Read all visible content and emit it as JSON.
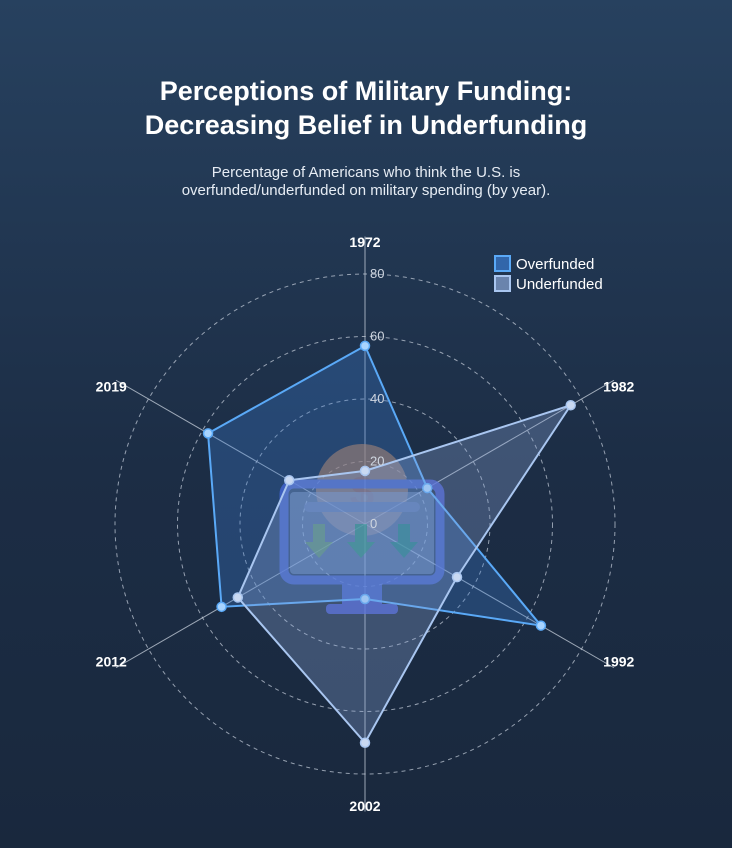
{
  "header": {
    "title_line1": "Perceptions of Military Funding:",
    "title_line2": "Decreasing Belief in Underfunding",
    "subtitle_line1": "Percentage of Americans who think the U.S. is",
    "subtitle_line2": "overfunded/underfunded on military spending (by year)."
  },
  "colors": {
    "overfunded_stroke": "#5aa9f7",
    "overfunded_fill": "#3b7bd0",
    "underfunded_stroke": "#a9c6f0",
    "underfunded_fill": "#8aa6d6",
    "grid": "#c9d2de",
    "axis": "#c9d2de"
  },
  "legend": {
    "position": "top-right"
  },
  "decor_icon": "monitor-with-money-and-down-arrows-icon",
  "chart_data": {
    "type": "radar",
    "title": "Perceptions of Military Funding: Decreasing Belief in Underfunding",
    "categories": [
      "1972",
      "1982",
      "1992",
      "2002",
      "2012",
      "2019"
    ],
    "rlim": [
      0,
      80
    ],
    "ticks": [
      0,
      20,
      40,
      60,
      80
    ],
    "tick_labels": [
      "0",
      "20",
      "40",
      "60",
      "80"
    ],
    "grid": true,
    "series": [
      {
        "name": "Overfunded",
        "values": [
          57,
          23,
          65,
          24,
          53,
          58
        ]
      },
      {
        "name": "Underfunded",
        "values": [
          17,
          76,
          34,
          70,
          47,
          28
        ]
      }
    ]
  }
}
